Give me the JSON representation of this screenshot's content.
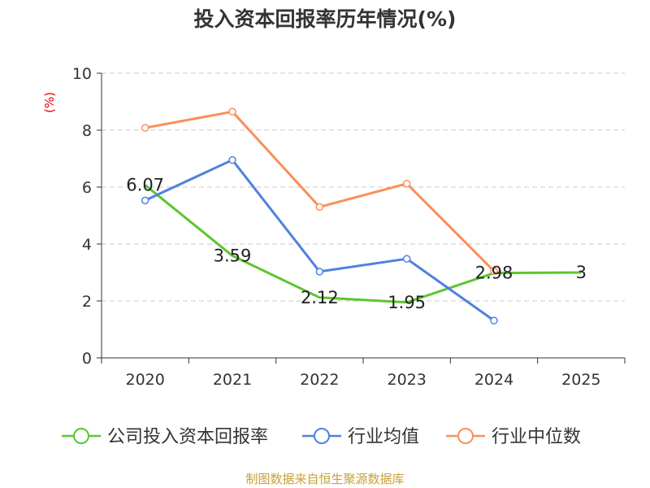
{
  "chart_data": {
    "type": "line",
    "title": "投入资本回报率历年情况(%)",
    "ylabel": "(%)",
    "xlabel": "",
    "ylim": [
      0,
      10
    ],
    "yticks": [
      0,
      2,
      4,
      6,
      8,
      10
    ],
    "grid": true,
    "categories": [
      "2020",
      "2021",
      "2022",
      "2023",
      "2024",
      "2025"
    ],
    "series": [
      {
        "name": "公司投入资本回报率",
        "color": "#5cc62e",
        "values": [
          6.07,
          3.59,
          2.12,
          1.95,
          2.98,
          3
        ],
        "labels": [
          "6.07",
          "3.59",
          "2.12",
          "1.95",
          "2.98",
          "3"
        ]
      },
      {
        "name": "行业均值",
        "color": "#4f81e0",
        "values": [
          5.53,
          6.95,
          3.03,
          3.48,
          1.31,
          null
        ]
      },
      {
        "name": "行业中位数",
        "color": "#f9905a",
        "values": [
          8.08,
          8.65,
          5.3,
          6.12,
          3.05,
          null
        ]
      }
    ],
    "legend_position": "bottom"
  },
  "footer": {
    "source": "制图数据来自恒生聚源数据库"
  }
}
